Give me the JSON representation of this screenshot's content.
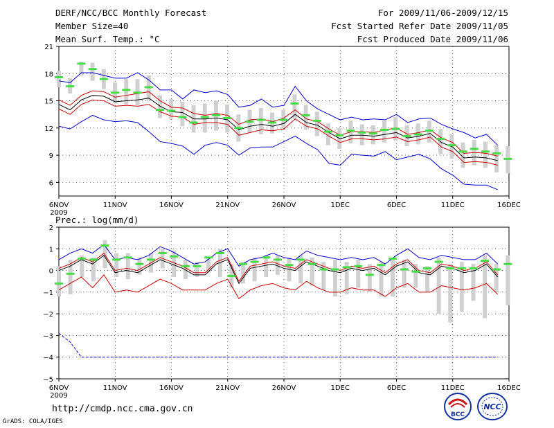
{
  "header": {
    "title": "DERF/NCC/BCC Monthly Forecast",
    "member_size": "Member Size=40",
    "variable": "Mean Surf. Temp.: °C",
    "period": "For 2009/11/06-2009/12/15",
    "fcst_started": "Fcst Started Refer Date 2009/11/05",
    "fcst_produced": "Fcst Produced Date 2009/11/06"
  },
  "footer": {
    "url": "http://cmdp.ncc.cma.gov.cn",
    "grads": "GrADS: COLA/IGES",
    "logo_bcc": "BCC",
    "logo_ncc": "NCC"
  },
  "colors": {
    "mean": "#000000",
    "spread": "#cc0000",
    "envelope": "#0000cc",
    "obs": "#44dd44",
    "box": "#d0d0d0"
  },
  "chart_data": [
    {
      "type": "line",
      "title": "Mean Surf. Temp.: °C",
      "ylabel": "°C",
      "ylim": [
        4.5,
        21
      ],
      "yticks": [
        "6",
        "9",
        "12",
        "15",
        "18",
        "21"
      ],
      "ytick_values": [
        6,
        9,
        12,
        15,
        18,
        21
      ],
      "xlim": [
        6,
        46
      ],
      "xticks": [
        {
          "day": 6,
          "label": "6NOV",
          "sub": "2009"
        },
        {
          "day": 11,
          "label": "11NOV"
        },
        {
          "day": 16,
          "label": "16NOV"
        },
        {
          "day": 21,
          "label": "21NOV"
        },
        {
          "day": 26,
          "label": "26NOV"
        },
        {
          "day": 31,
          "label": "1DEC"
        },
        {
          "day": 36,
          "label": "6DEC"
        },
        {
          "day": 41,
          "label": "11DEC"
        },
        {
          "day": 46,
          "label": "16DEC"
        }
      ],
      "days": [
        6,
        7,
        8,
        9,
        10,
        11,
        12,
        13,
        14,
        15,
        16,
        17,
        18,
        19,
        20,
        21,
        22,
        23,
        24,
        25,
        26,
        27,
        28,
        29,
        30,
        31,
        32,
        33,
        34,
        35,
        36,
        37,
        38,
        39,
        40,
        41,
        42,
        43,
        44,
        45
      ],
      "series": [
        {
          "name": "ensemble mean",
          "color": "black",
          "values": [
            14.6,
            14,
            15.1,
            15.6,
            15.5,
            14.9,
            15,
            15.1,
            15.3,
            14.4,
            13.8,
            13.7,
            13,
            13,
            13.1,
            12.9,
            11.8,
            12.2,
            12.4,
            12.2,
            12.5,
            13.5,
            12.6,
            12.3,
            11.5,
            10.8,
            11.2,
            11.2,
            11.1,
            11.3,
            11.5,
            10.9,
            11.1,
            11.4,
            10.4,
            9.9,
            8.7,
            8.8,
            8.7,
            8.4
          ]
        },
        {
          "name": "mean + spread",
          "color": "red",
          "values": [
            15.1,
            14.5,
            15.6,
            16.1,
            16,
            15.4,
            15.6,
            15.8,
            16,
            15,
            14.3,
            14.2,
            13.6,
            13.4,
            13.6,
            13.4,
            12.4,
            12.9,
            13,
            12.7,
            13.1,
            14,
            13,
            12.7,
            11.9,
            11.2,
            11.6,
            11.6,
            11.5,
            11.8,
            12,
            11.3,
            11.5,
            11.8,
            10.9,
            10.4,
            9.2,
            9.3,
            9.2,
            8.9
          ]
        },
        {
          "name": "mean - spread",
          "color": "red",
          "values": [
            14.1,
            13.5,
            14.6,
            15.1,
            15,
            14.4,
            14.5,
            14.4,
            14.6,
            13.8,
            13.3,
            13.2,
            12.4,
            12.6,
            12.6,
            12.4,
            11.2,
            11.5,
            11.8,
            11.7,
            11.9,
            13,
            12.2,
            11.9,
            11.1,
            10.4,
            10.8,
            10.8,
            10.7,
            10.8,
            11,
            10.5,
            10.7,
            11,
            9.9,
            9.4,
            8.2,
            8.3,
            8.2,
            7.9
          ]
        },
        {
          "name": "ensemble max",
          "color": "blue",
          "values": [
            17.2,
            17,
            18.1,
            18.1,
            17.8,
            17.5,
            17.5,
            18.1,
            17.3,
            16.2,
            16.2,
            15.2,
            16.2,
            15.9,
            16.1,
            15.7,
            14.3,
            14.5,
            15.2,
            14.3,
            14.5,
            16.6,
            15,
            14.1,
            13.5,
            12.9,
            13.2,
            12.9,
            13,
            12.9,
            13.5,
            12.6,
            13,
            13.1,
            12.4,
            11.9,
            11.5,
            10.9,
            11.3,
            10.1
          ]
        },
        {
          "name": "ensemble min",
          "color": "blue",
          "values": [
            12.2,
            11.9,
            12.7,
            13.4,
            12.9,
            12.7,
            12.8,
            12.6,
            11.6,
            10.5,
            10.3,
            10,
            9.1,
            10.1,
            10.4,
            10.1,
            9,
            9.8,
            9.9,
            9.9,
            10.5,
            11.1,
            10.3,
            9.6,
            8.1,
            7.9,
            9.1,
            9,
            8.9,
            9.4,
            8.5,
            8.8,
            9.1,
            8.6,
            7.5,
            6.8,
            5.8,
            5.7,
            5.7,
            5.2
          ]
        }
      ],
      "observed": [
        17.6,
        16.6,
        19.1,
        18.5,
        17.4,
        15.9,
        16.2,
        15.9,
        16.5,
        14,
        13.9,
        13.2,
        12.6,
        13.2,
        13.4,
        13.1,
        12,
        12.7,
        12.9,
        12.6,
        12.9,
        14.7,
        13.4,
        12.8,
        11.6,
        11.2,
        11.7,
        11.5,
        11.4,
        11.8,
        11.9,
        11.1,
        11.3,
        11.7,
        10.8,
        10.1,
        9.4,
        9.7,
        9.4,
        9.2,
        8.6
      ],
      "box_low": [
        16.5,
        15.8,
        17.8,
        17.2,
        16.3,
        14.7,
        14.6,
        14.5,
        15,
        13.1,
        13,
        12.2,
        11.5,
        11.5,
        11.7,
        11.5,
        10.5,
        11.5,
        11.3,
        11.4,
        11.8,
        13,
        11.8,
        11.1,
        10.1,
        9.7,
        10.3,
        10.1,
        10.2,
        10.4,
        10.6,
        10,
        10.2,
        10.4,
        9.1,
        8.6,
        7.6,
        7.9,
        7.6,
        7.1,
        7
      ],
      "box_high": [
        18.3,
        17.5,
        19.3,
        19.2,
        18.5,
        17,
        17.4,
        17.4,
        17.8,
        15.6,
        15.2,
        14.9,
        14.5,
        14.7,
        15,
        14.6,
        13.5,
        14,
        14.2,
        13.7,
        14,
        15.7,
        14.5,
        13.8,
        12.5,
        12,
        12.8,
        12.4,
        12.3,
        12.8,
        13.2,
        12.3,
        12.5,
        12.8,
        11.9,
        11.3,
        10.4,
        10.7,
        10.5,
        10.1,
        10
      ]
    },
    {
      "type": "line",
      "title": "Prec.: log(mm/d)",
      "ylabel": "log(mm/d)",
      "ylim": [
        -5,
        2
      ],
      "yticks": [
        "−5",
        "−4",
        "−3",
        "−2",
        "−1",
        "0",
        "1",
        "2"
      ],
      "ytick_values": [
        -5,
        -4,
        -3,
        -2,
        -1,
        0,
        1,
        2
      ],
      "xlim": [
        6,
        46
      ],
      "xticks": [
        {
          "day": 6,
          "label": "6NOV",
          "sub": "2009"
        },
        {
          "day": 11,
          "label": "11NOV"
        },
        {
          "day": 16,
          "label": "16NOV"
        },
        {
          "day": 21,
          "label": "21NOV"
        },
        {
          "day": 26,
          "label": "26NOV"
        },
        {
          "day": 31,
          "label": "1DEC"
        },
        {
          "day": 36,
          "label": "6DEC"
        },
        {
          "day": 41,
          "label": "11DEC"
        },
        {
          "day": 46,
          "label": "16DEC"
        }
      ],
      "days": [
        6,
        7,
        8,
        9,
        10,
        11,
        12,
        13,
        14,
        15,
        16,
        17,
        18,
        19,
        20,
        21,
        22,
        23,
        24,
        25,
        26,
        27,
        28,
        29,
        30,
        31,
        32,
        33,
        34,
        35,
        36,
        37,
        38,
        39,
        40,
        41,
        42,
        43,
        44,
        45
      ],
      "series": [
        {
          "name": "ensemble mean",
          "color": "black",
          "values": [
            0,
            0.2,
            0.5,
            0.3,
            0.7,
            -0.1,
            0,
            -0.1,
            0.2,
            0.5,
            0.3,
            0.1,
            -0.2,
            -0.2,
            0.3,
            0.5,
            -0.6,
            0.1,
            0.2,
            0.3,
            0.1,
            0,
            0.4,
            0.2,
            0,
            -0.1,
            0.1,
            0,
            0.1,
            -0.2,
            0.2,
            0.4,
            -0.1,
            -0.2,
            0.2,
            0.1,
            -0.1,
            0,
            0.3,
            -0.3
          ]
        },
        {
          "name": "mean + spread",
          "color": "red",
          "values": [
            0.1,
            0.3,
            0.6,
            0.4,
            0.8,
            0,
            0.1,
            0,
            0.3,
            0.6,
            0.4,
            0.2,
            -0.1,
            -0.1,
            0.4,
            0.6,
            -0.5,
            0.2,
            0.3,
            0.4,
            0.2,
            0.1,
            0.5,
            0.3,
            0.1,
            0,
            0.2,
            0.1,
            0.2,
            -0.1,
            0.3,
            0.5,
            0,
            -0.1,
            0.3,
            0.2,
            0,
            0.1,
            0.4,
            -0.2
          ]
        },
        {
          "name": "mean - spread",
          "color": "red",
          "values": [
            -0.9,
            -0.6,
            -0.3,
            -0.8,
            -0.2,
            -1,
            -0.9,
            -1,
            -0.7,
            -0.4,
            -0.6,
            -0.9,
            -0.9,
            -0.9,
            -0.6,
            -0.4,
            -1.3,
            -0.9,
            -0.7,
            -0.6,
            -0.8,
            -0.9,
            -0.5,
            -0.8,
            -1,
            -1,
            -0.8,
            -0.9,
            -0.9,
            -1.2,
            -0.8,
            -0.6,
            -1,
            -1,
            -0.7,
            -0.8,
            -0.9,
            -0.8,
            -0.6,
            -1.1
          ]
        },
        {
          "name": "ensemble max",
          "color": "blue",
          "values": [
            0.5,
            0.8,
            1,
            0.8,
            1.2,
            0.5,
            0.6,
            0.5,
            0.7,
            1.1,
            0.9,
            0.6,
            0.3,
            0.4,
            0.8,
            1,
            0.2,
            0.5,
            0.6,
            0.8,
            0.6,
            0.5,
            0.9,
            0.7,
            0.6,
            0.5,
            0.6,
            0.5,
            0.6,
            0.3,
            0.7,
            1,
            0.6,
            0.5,
            0.7,
            0.6,
            0.5,
            0.5,
            0.8,
            0.3
          ]
        },
        {
          "name": "ensemble min",
          "color": "blue",
          "values": [
            -2.9,
            -3.3,
            -4,
            -4,
            -4,
            -4,
            -4,
            -4,
            -4,
            -4,
            -4,
            -4,
            -4,
            -4,
            -4,
            -4,
            -4,
            -4,
            -4,
            -4,
            -4,
            -4,
            -4,
            -4,
            -4,
            -4,
            -4,
            -4,
            -4,
            -4,
            -4,
            -4,
            -4,
            -4,
            -4,
            -4,
            -4,
            -4,
            -4,
            -4
          ]
        }
      ],
      "observed": [
        -0.6,
        -0.15,
        0.55,
        0.5,
        1.15,
        0.5,
        0.6,
        0.3,
        0.5,
        0.8,
        0.65,
        0.2,
        0.2,
        0.6,
        0.8,
        -0.25,
        0.3,
        0.4,
        0.6,
        0.5,
        0.25,
        0.5,
        0.3,
        0.05,
        0.05,
        0.15,
        0.2,
        -0.2,
        0.25,
        0.55,
        0.05,
        -0.05,
        0.1,
        0.4,
        0.1,
        0.1,
        0.1,
        0.45,
        0.05,
        0.3
      ],
      "box_low": [
        -1.2,
        -1.1,
        -0.3,
        -0.5,
        0.1,
        -0.3,
        -0.4,
        -0.2,
        -0.1,
        0.1,
        -0.3,
        -0.4,
        -0.3,
        -0.1,
        -0.3,
        -0.8,
        -0.6,
        -0.5,
        -0.3,
        -0.2,
        -0.5,
        -0.6,
        -0.7,
        -0.9,
        -1.2,
        -1.1,
        -0.8,
        -1,
        -1.2,
        -1.2,
        -0.8,
        -0.8,
        -1,
        -2,
        -2.4,
        -1.9,
        -1.4,
        -2.2,
        -1,
        -1.6
      ],
      "box_high": [
        0.2,
        0.5,
        0.7,
        0.6,
        1.4,
        0.8,
        0.8,
        0.6,
        0.8,
        1,
        0.9,
        0.5,
        0.4,
        0.6,
        1,
        0.3,
        0.4,
        0.6,
        0.7,
        0.7,
        0.6,
        0.7,
        0.6,
        0.4,
        0.5,
        0.4,
        0.5,
        0.3,
        0.4,
        0.6,
        0.5,
        0.3,
        0.2,
        0.6,
        0.3,
        0.4,
        0.3,
        0.7,
        0.3,
        0.7
      ]
    }
  ]
}
